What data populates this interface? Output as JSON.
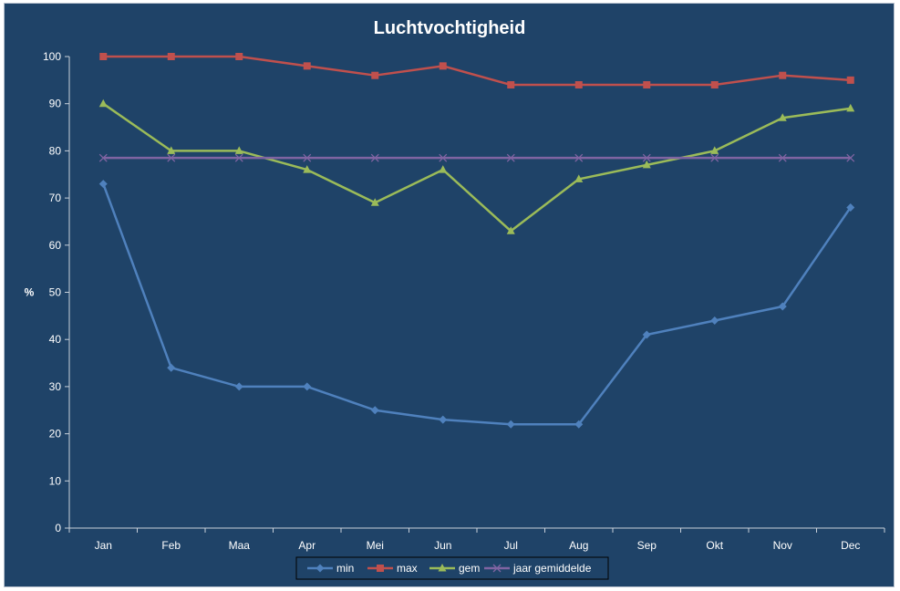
{
  "chart_data": {
    "type": "line",
    "title": "Luchtvochtigheid",
    "xlabel": "",
    "ylabel": "%",
    "ylim": [
      0,
      100
    ],
    "yticks": [
      0,
      10,
      20,
      30,
      40,
      50,
      60,
      70,
      80,
      90,
      100
    ],
    "categories": [
      "Jan",
      "Feb",
      "Maa",
      "Apr",
      "Mei",
      "Jun",
      "Jul",
      "Aug",
      "Sep",
      "Okt",
      "Nov",
      "Dec"
    ],
    "grid": false,
    "legend_position": "bottom",
    "series": [
      {
        "name": "min",
        "color": "#4f81bd",
        "marker": "diamond",
        "values": [
          73,
          34,
          30,
          30,
          25,
          23,
          22,
          22,
          41,
          44,
          47,
          68
        ]
      },
      {
        "name": "max",
        "color": "#c0504d",
        "marker": "square",
        "values": [
          100,
          100,
          100,
          98,
          96,
          98,
          94,
          94,
          94,
          94,
          96,
          95
        ]
      },
      {
        "name": "gem",
        "color": "#9bbb59",
        "marker": "triangle",
        "values": [
          90,
          80,
          80,
          76,
          69,
          76,
          63,
          74,
          77,
          80,
          87,
          89
        ]
      },
      {
        "name": "jaar gemiddelde",
        "color": "#8064a2",
        "marker": "x",
        "values": [
          78.5,
          78.5,
          78.5,
          78.5,
          78.5,
          78.5,
          78.5,
          78.5,
          78.5,
          78.5,
          78.5,
          78.5
        ]
      }
    ]
  }
}
